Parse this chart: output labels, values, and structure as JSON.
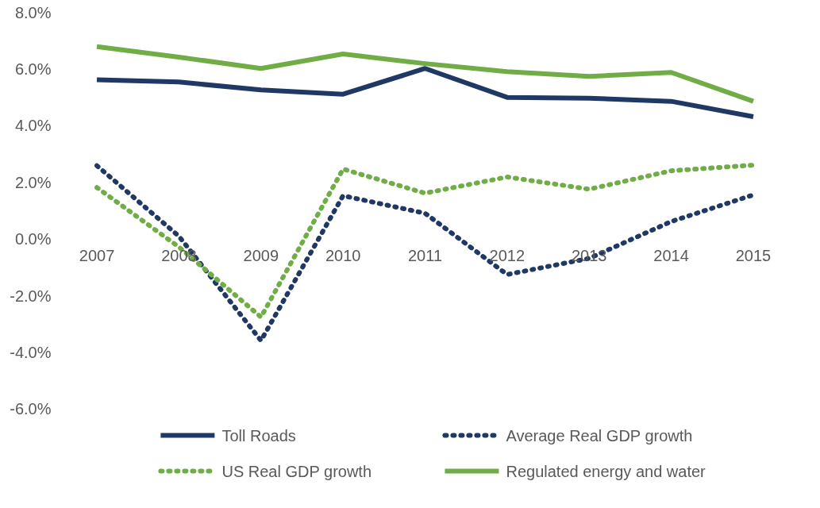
{
  "chart_data": {
    "type": "line",
    "categories": [
      "2007",
      "2008",
      "2009",
      "2010",
      "2011",
      "2012",
      "2013",
      "2014",
      "2015"
    ],
    "ylim": [
      -6,
      8
    ],
    "yticks": [
      {
        "value": -6,
        "label": "-6.0%"
      },
      {
        "value": -4,
        "label": "-4.0%"
      },
      {
        "value": -2,
        "label": "-2.0%"
      },
      {
        "value": 0,
        "label": "0.0%"
      },
      {
        "value": 2,
        "label": "2.0%"
      },
      {
        "value": 4,
        "label": "4.0%"
      },
      {
        "value": 6,
        "label": "6.0%"
      },
      {
        "value": 8,
        "label": "8.0%"
      }
    ],
    "grid": false,
    "legend": "bottom",
    "marker": "none",
    "series": [
      {
        "name": "Toll Roads",
        "color": "#1f3864",
        "line_style": "solid",
        "values": [
          5.62,
          5.54,
          5.26,
          5.11,
          6.02,
          5.0,
          4.97,
          4.86,
          4.32
        ]
      },
      {
        "name": "Average Real GDP growth",
        "color": "#1f3864",
        "line_style": "dotted",
        "values": [
          2.59,
          0.1,
          -3.58,
          1.53,
          0.91,
          -1.25,
          -0.68,
          0.62,
          1.56
        ]
      },
      {
        "name": "US Real GDP growth",
        "color": "#70ad47",
        "line_style": "dotted",
        "values": [
          1.82,
          -0.28,
          -2.75,
          2.47,
          1.62,
          2.19,
          1.76,
          2.41,
          2.61
        ]
      },
      {
        "name": "Regulated energy and water",
        "color": "#70ad47",
        "line_style": "solid",
        "values": [
          6.79,
          6.42,
          6.02,
          6.53,
          6.19,
          5.91,
          5.74,
          5.88,
          4.86
        ]
      }
    ]
  }
}
